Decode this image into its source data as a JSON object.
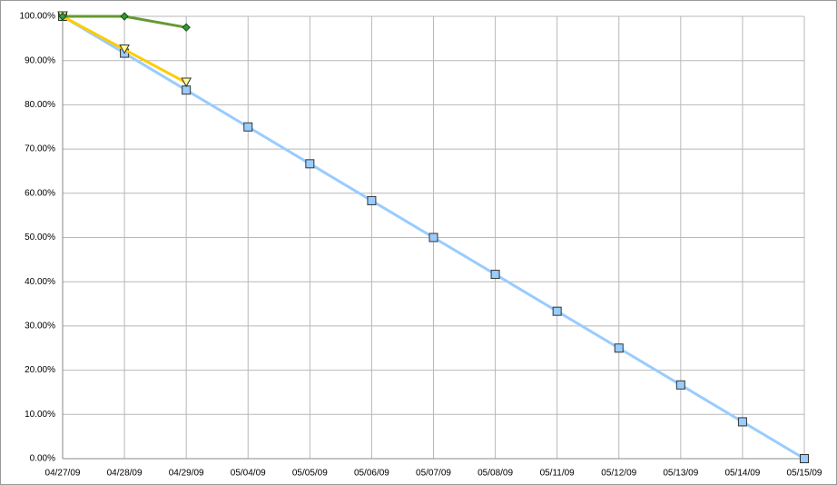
{
  "chart_data": {
    "type": "line",
    "categories": [
      "04/27/09",
      "04/28/09",
      "04/29/09",
      "05/04/09",
      "05/05/09",
      "05/06/09",
      "05/07/09",
      "05/08/09",
      "05/11/09",
      "05/12/09",
      "05/13/09",
      "05/14/09",
      "05/15/09"
    ],
    "series": [
      {
        "color": "#99ccff",
        "marker": "square",
        "marker_fill": "#99ccff",
        "values": [
          100,
          91.67,
          83.33,
          75,
          66.67,
          58.33,
          50,
          41.67,
          33.33,
          25,
          16.67,
          8.33,
          0
        ]
      },
      {
        "color": "#ffcc00",
        "marker": "triangle-down",
        "marker_fill": "#ffff99",
        "values": [
          100,
          92.5,
          85,
          null,
          null,
          null,
          null,
          null,
          null,
          null,
          null,
          null,
          null
        ]
      },
      {
        "color": "#669933",
        "marker": "diamond",
        "marker_fill": "#339933",
        "values": [
          100,
          100,
          97.5,
          null,
          null,
          null,
          null,
          null,
          null,
          null,
          null,
          null,
          null
        ]
      }
    ],
    "ylim": [
      0,
      100
    ],
    "yticks": [
      {
        "value": 0,
        "label": "0.00%"
      },
      {
        "value": 10,
        "label": "10.00%"
      },
      {
        "value": 20,
        "label": "20.00%"
      },
      {
        "value": 30,
        "label": "30.00%"
      },
      {
        "value": 40,
        "label": "40.00%"
      },
      {
        "value": 50,
        "label": "50.00%"
      },
      {
        "value": 60,
        "label": "60.00%"
      },
      {
        "value": 70,
        "label": "70.00%"
      },
      {
        "value": 80,
        "label": "80.00%"
      },
      {
        "value": 90,
        "label": "90.00%"
      },
      {
        "value": 100,
        "label": "100.00%"
      }
    ],
    "grid": true
  }
}
